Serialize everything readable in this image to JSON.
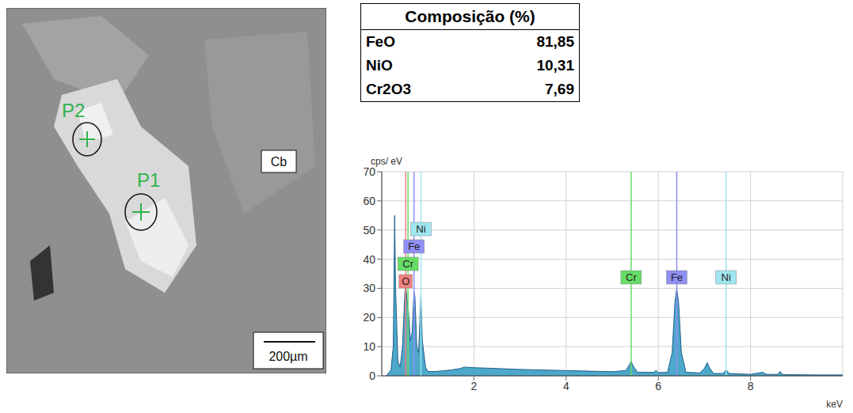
{
  "image": {
    "points": [
      {
        "label": "P2",
        "color": "#2fb34a"
      },
      {
        "label": "P1",
        "color": "#2fb34a"
      }
    ],
    "region_label": "Cb",
    "scale_bar": "200µm"
  },
  "table": {
    "title": "Composição (%)",
    "rows": [
      [
        "FeO",
        "81,85"
      ],
      [
        "NiO",
        "10,31"
      ],
      [
        "Cr2O3",
        "7,69"
      ]
    ]
  },
  "chart_data": {
    "type": "area",
    "y_label": "cps/ eV",
    "x_label": "keV",
    "x": [
      0.1,
      0.2,
      0.25,
      0.28,
      0.3,
      0.35,
      0.4,
      0.45,
      0.5,
      0.52,
      0.55,
      0.58,
      0.62,
      0.66,
      0.7,
      0.72,
      0.76,
      0.8,
      0.85,
      0.88,
      0.95,
      1.0,
      1.2,
      1.5,
      1.7,
      1.8,
      2.0,
      2.5,
      3.0,
      3.5,
      4.0,
      4.5,
      5.0,
      5.3,
      5.38,
      5.41,
      5.45,
      5.55,
      5.9,
      5.95,
      6.0,
      6.2,
      6.3,
      6.36,
      6.4,
      6.44,
      6.5,
      6.6,
      6.9,
      7.0,
      7.06,
      7.12,
      7.2,
      7.4,
      7.47,
      7.54,
      8.0,
      8.26,
      8.35,
      8.6,
      8.64,
      8.7,
      9.5,
      10.0
    ],
    "values": [
      0,
      2,
      10,
      55,
      30,
      5,
      3,
      10,
      28,
      31,
      26,
      22,
      12,
      15,
      29,
      27,
      10,
      8,
      28,
      12,
      3,
      1.5,
      1.5,
      2,
      2.5,
      3,
      2.8,
      2.5,
      2.2,
      2,
      1.8,
      1.6,
      1.4,
      1.8,
      4,
      5,
      3.5,
      1.2,
      1.2,
      1.8,
      1.1,
      1.2,
      8,
      25,
      30,
      25,
      8,
      1.2,
      1,
      2.5,
      4.5,
      2.5,
      0.8,
      0.8,
      2,
      0.8,
      0.5,
      1.2,
      0.5,
      0.5,
      1.5,
      0.4,
      0.3,
      0.3
    ],
    "color": "#3a9fc4",
    "xlim": [
      0,
      10
    ],
    "ylim": [
      0,
      70
    ],
    "xticks": [
      2,
      4,
      6,
      8
    ],
    "yticks": [
      0,
      10,
      20,
      30,
      40,
      50,
      60,
      70
    ],
    "grid": true,
    "markers": [
      {
        "label": "O",
        "x": 0.52,
        "color": "#f08080"
      },
      {
        "label": "Cr",
        "x": 0.57,
        "color": "#66dd66"
      },
      {
        "label": "Fe",
        "x": 0.7,
        "color": "#8f8ff5"
      },
      {
        "label": "Ni",
        "x": 0.85,
        "color": "#9fe6f0"
      },
      {
        "label": "Cr",
        "x": 5.41,
        "color": "#66dd66"
      },
      {
        "label": "Fe",
        "x": 6.4,
        "color": "#8f8ff5"
      },
      {
        "label": "Ni",
        "x": 7.47,
        "color": "#9fe6f0"
      }
    ]
  }
}
